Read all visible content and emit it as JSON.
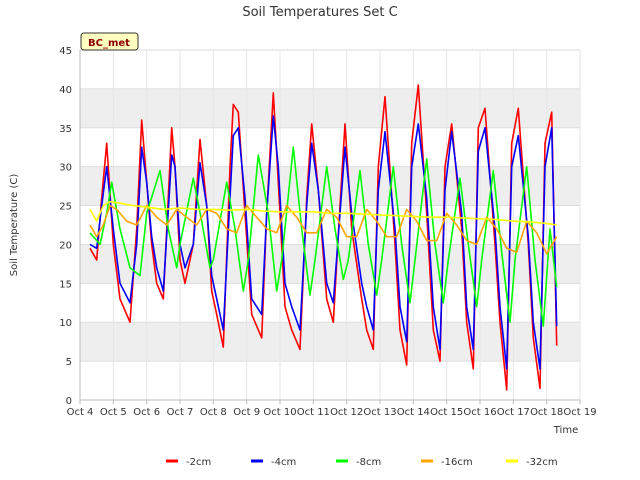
{
  "chart_data": {
    "type": "line",
    "title": "Soil Temperatures Set C",
    "xlabel": "Time",
    "ylabel": "Soil Temperature (C)",
    "badge": "BC_met",
    "xlim": [
      4,
      19
    ],
    "ylim": [
      0,
      45
    ],
    "x_ticks": [
      4,
      5,
      6,
      7,
      8,
      9,
      10,
      11,
      12,
      13,
      14,
      15,
      16,
      17,
      18,
      19
    ],
    "x_tick_labels": [
      "Oct 4",
      "Oct 5",
      "Oct 6",
      "Oct 7",
      "Oct 8",
      "Oct 9",
      "Oct 10",
      "Oct 11",
      "Oct 12",
      "Oct 13",
      "Oct 14",
      "Oct 15",
      "Oct 16",
      "Oct 17",
      "Oct 18",
      "Oct 19"
    ],
    "y_ticks": [
      0,
      5,
      10,
      15,
      20,
      25,
      30,
      35,
      40,
      45
    ],
    "y_tick_labels": [
      "0",
      "5",
      "10",
      "15",
      "20",
      "25",
      "30",
      "35",
      "40",
      "45"
    ],
    "grid": "horizontal bands",
    "legend_position": "bottom",
    "series": [
      {
        "name": "-2cm",
        "color": "#ff0000",
        "x": [
          4.3,
          4.5,
          4.65,
          4.8,
          5.0,
          5.2,
          5.5,
          5.7,
          5.85,
          6.0,
          6.15,
          6.3,
          6.5,
          6.75,
          6.85,
          7.0,
          7.15,
          7.4,
          7.6,
          7.8,
          7.95,
          8.1,
          8.3,
          8.5,
          8.6,
          8.75,
          8.95,
          9.15,
          9.45,
          9.6,
          9.8,
          9.95,
          10.15,
          10.35,
          10.6,
          10.8,
          10.95,
          11.15,
          11.4,
          11.6,
          11.8,
          11.95,
          12.15,
          12.45,
          12.6,
          12.8,
          12.95,
          13.15,
          13.45,
          13.6,
          13.8,
          13.95,
          14.15,
          14.4,
          14.6,
          14.8,
          14.95,
          15.15,
          15.45,
          15.6,
          15.8,
          15.95,
          16.15,
          16.45,
          16.6,
          16.8,
          16.95,
          17.15,
          17.45,
          17.6,
          17.8,
          17.95,
          18.15,
          18.3
        ],
        "values": [
          19.5,
          18.0,
          26.0,
          33.0,
          20.0,
          13.0,
          10.0,
          22.0,
          36.0,
          28.0,
          20.0,
          15.0,
          13.0,
          35.0,
          30.0,
          18.0,
          15.0,
          20.0,
          33.5,
          25.0,
          14.0,
          11.0,
          6.8,
          30.0,
          38.0,
          37.0,
          24.0,
          11.0,
          8.0,
          24.0,
          39.5,
          28.0,
          12.0,
          9.0,
          6.5,
          26.0,
          35.5,
          27.0,
          13.0,
          10.0,
          25.0,
          35.5,
          22.0,
          13.0,
          9.0,
          6.5,
          30.0,
          39.0,
          20.0,
          9.0,
          4.5,
          33.0,
          40.5,
          24.0,
          9.0,
          5.0,
          30.0,
          35.5,
          22.0,
          10.0,
          4.0,
          35.0,
          37.5,
          20.0,
          10.0,
          1.3,
          33.0,
          37.5,
          20.0,
          8.0,
          1.5,
          33.0,
          37.0,
          7.0
        ]
      },
      {
        "name": "-4cm",
        "color": "#0000ff",
        "x": [
          4.3,
          4.5,
          4.65,
          4.8,
          5.0,
          5.2,
          5.5,
          5.7,
          5.85,
          6.0,
          6.15,
          6.3,
          6.5,
          6.75,
          6.85,
          7.0,
          7.15,
          7.4,
          7.6,
          7.8,
          7.95,
          8.1,
          8.3,
          8.5,
          8.6,
          8.75,
          8.95,
          9.15,
          9.45,
          9.6,
          9.8,
          9.95,
          10.15,
          10.35,
          10.6,
          10.8,
          10.95,
          11.15,
          11.4,
          11.6,
          11.8,
          11.95,
          12.15,
          12.45,
          12.6,
          12.8,
          12.95,
          13.15,
          13.45,
          13.6,
          13.8,
          13.95,
          14.15,
          14.4,
          14.6,
          14.8,
          14.95,
          15.15,
          15.45,
          15.6,
          15.8,
          15.95,
          16.15,
          16.45,
          16.6,
          16.8,
          16.95,
          17.15,
          17.45,
          17.6,
          17.8,
          17.95,
          18.15,
          18.3
        ],
        "values": [
          20.0,
          19.5,
          25.0,
          30.0,
          22.0,
          15.0,
          12.5,
          20.0,
          32.5,
          28.0,
          21.0,
          17.0,
          14.0,
          31.5,
          30.0,
          20.0,
          17.0,
          20.0,
          30.5,
          25.0,
          16.0,
          13.0,
          9.0,
          26.0,
          34.0,
          35.0,
          26.0,
          13.0,
          11.0,
          24.0,
          36.5,
          30.0,
          15.0,
          12.0,
          9.0,
          25.0,
          33.0,
          27.0,
          15.0,
          12.5,
          24.0,
          32.5,
          24.0,
          15.0,
          12.0,
          9.0,
          27.0,
          34.5,
          22.0,
          12.0,
          7.5,
          30.0,
          35.5,
          26.0,
          12.0,
          6.5,
          27.0,
          34.5,
          24.0,
          12.0,
          6.5,
          32.0,
          35.0,
          22.0,
          12.0,
          4.0,
          30.0,
          34.0,
          21.0,
          10.0,
          4.0,
          30.0,
          35.0,
          9.5
        ]
      },
      {
        "name": "-8cm",
        "color": "#00ff00",
        "x": [
          4.3,
          4.6,
          4.8,
          4.95,
          5.2,
          5.5,
          5.8,
          6.0,
          6.4,
          6.65,
          6.9,
          7.0,
          7.4,
          7.65,
          7.9,
          8.0,
          8.4,
          8.65,
          8.9,
          9.05,
          9.35,
          9.65,
          9.9,
          10.05,
          10.4,
          10.65,
          10.9,
          11.05,
          11.4,
          11.65,
          11.9,
          12.05,
          12.4,
          12.65,
          12.9,
          13.05,
          13.4,
          13.65,
          13.9,
          14.05,
          14.4,
          14.65,
          14.9,
          15.05,
          15.4,
          15.65,
          15.9,
          16.05,
          16.4,
          16.65,
          16.9,
          17.05,
          17.4,
          17.65,
          17.9,
          18.1,
          18.3
        ],
        "values": [
          21.5,
          20.0,
          24.0,
          28.0,
          22.0,
          17.0,
          16.0,
          24.0,
          29.5,
          22.0,
          17.0,
          20.0,
          28.5,
          23.0,
          17.0,
          18.0,
          28.0,
          22.0,
          14.0,
          18.0,
          31.5,
          24.0,
          14.0,
          18.0,
          32.5,
          22.0,
          13.5,
          18.0,
          30.0,
          22.0,
          15.5,
          18.0,
          29.5,
          20.0,
          13.5,
          18.0,
          30.0,
          20.0,
          12.5,
          18.0,
          31.0,
          20.0,
          12.5,
          18.0,
          28.5,
          20.0,
          12.0,
          18.0,
          29.5,
          19.0,
          10.0,
          18.0,
          30.0,
          18.0,
          9.5,
          22.0,
          14.5
        ]
      },
      {
        "name": "-16cm",
        "color": "#ffa500",
        "x": [
          4.3,
          4.5,
          4.7,
          4.9,
          5.1,
          5.4,
          5.7,
          6.0,
          6.3,
          6.6,
          6.9,
          7.2,
          7.5,
          7.8,
          8.1,
          8.4,
          8.7,
          9.0,
          9.3,
          9.6,
          9.9,
          10.2,
          10.5,
          10.8,
          11.1,
          11.4,
          11.7,
          12.0,
          12.3,
          12.6,
          12.9,
          13.2,
          13.5,
          13.8,
          14.1,
          14.4,
          14.7,
          15.0,
          15.3,
          15.6,
          15.9,
          16.2,
          16.5,
          16.8,
          17.1,
          17.4,
          17.7,
          18.0,
          18.3
        ],
        "values": [
          22.5,
          21.0,
          22.5,
          25.0,
          24.5,
          23.0,
          22.5,
          25.0,
          23.5,
          22.5,
          24.5,
          23.5,
          22.5,
          24.5,
          24.0,
          22.0,
          21.5,
          25.0,
          23.5,
          22.0,
          21.5,
          25.0,
          23.5,
          21.5,
          21.5,
          24.5,
          23.5,
          21.0,
          21.0,
          24.5,
          23.0,
          21.0,
          21.0,
          24.5,
          23.0,
          20.5,
          20.5,
          24.0,
          22.5,
          20.5,
          20.0,
          23.5,
          22.0,
          19.5,
          19.0,
          23.0,
          21.5,
          18.8,
          21.0
        ]
      },
      {
        "name": "-32cm",
        "color": "#ffff00",
        "x": [
          4.3,
          4.5,
          4.7,
          4.9,
          5.2,
          5.6,
          6.0,
          6.5,
          7.0,
          7.5,
          8.0,
          8.5,
          9.0,
          9.5,
          10.0,
          10.5,
          11.0,
          11.5,
          12.0,
          12.5,
          13.0,
          13.5,
          14.0,
          14.5,
          15.0,
          15.5,
          16.0,
          16.5,
          17.0,
          17.5,
          18.0,
          18.3
        ],
        "values": [
          24.5,
          23.0,
          25.0,
          25.5,
          25.3,
          25.0,
          24.8,
          24.5,
          24.7,
          24.5,
          24.5,
          24.4,
          24.5,
          24.3,
          24.2,
          24.2,
          24.2,
          24.0,
          24.0,
          23.9,
          23.8,
          23.7,
          23.6,
          23.5,
          23.5,
          23.4,
          23.3,
          23.2,
          23.0,
          22.9,
          22.7,
          22.5
        ]
      }
    ]
  }
}
